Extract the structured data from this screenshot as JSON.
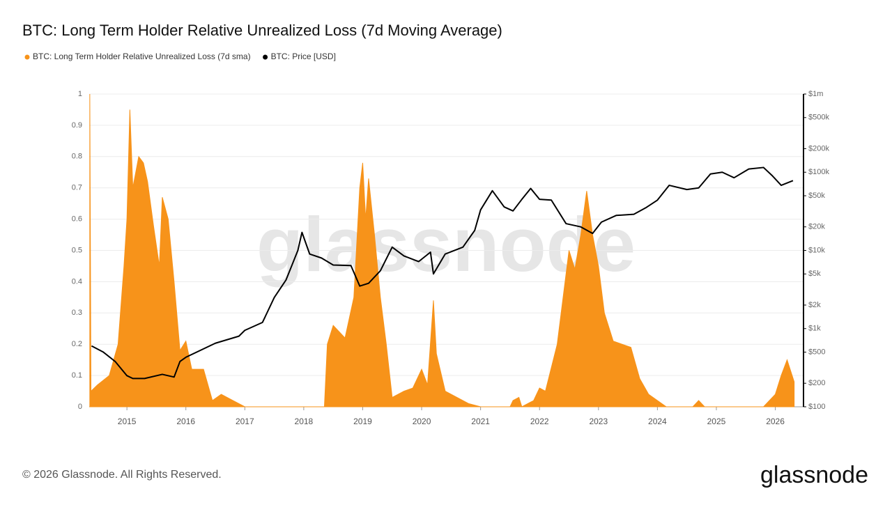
{
  "chart_data": {
    "type": "area-line",
    "title": "BTC: Long Term Holder Relative Unrealized Loss (7d Moving Average)",
    "watermark": "glassnode",
    "footer": "© 2026 Glassnode. All Rights Reserved.",
    "logo": "glassnode",
    "xlim": [
      2014.36,
      2026.36
    ],
    "xticks": [
      2015,
      2016,
      2017,
      2018,
      2019,
      2020,
      2021,
      2022,
      2023,
      2024,
      2025,
      2026
    ],
    "ylim": [
      0,
      1
    ],
    "yticks": [
      0,
      0.1,
      0.2,
      0.3,
      0.4,
      0.5,
      0.6,
      0.7,
      0.8,
      0.9,
      1
    ],
    "y2lim": [
      100,
      1000000
    ],
    "y2scale": "log",
    "y2ticks": [
      {
        "value": 100,
        "label": "$100"
      },
      {
        "value": 200,
        "label": "$200"
      },
      {
        "value": 500,
        "label": "$500"
      },
      {
        "value": 1000,
        "label": "$1k"
      },
      {
        "value": 2000,
        "label": "$2k"
      },
      {
        "value": 5000,
        "label": "$5k"
      },
      {
        "value": 10000,
        "label": "$10k"
      },
      {
        "value": 20000,
        "label": "$20k"
      },
      {
        "value": 50000,
        "label": "$50k"
      },
      {
        "value": 100000,
        "label": "$100k"
      },
      {
        "value": 200000,
        "label": "$200k"
      },
      {
        "value": 500000,
        "label": "$500k"
      },
      {
        "value": 1000000,
        "label": "$1m"
      }
    ],
    "grid": true,
    "series": [
      {
        "name": "BTC: Long Term Holder Relative Unrealized Loss (7d sma)",
        "color": "#f7931a",
        "kind": "area",
        "x": [
          2014.37,
          2014.39,
          2014.5,
          2014.7,
          2014.85,
          2014.95,
          2015.0,
          2015.05,
          2015.1,
          2015.2,
          2015.28,
          2015.35,
          2015.45,
          2015.55,
          2015.6,
          2015.7,
          2015.8,
          2015.9,
          2016.0,
          2016.1,
          2016.3,
          2016.45,
          2016.6,
          2016.8,
          2017.0,
          2018.35,
          2018.4,
          2018.5,
          2018.6,
          2018.7,
          2018.85,
          2018.95,
          2019.0,
          2019.05,
          2019.1,
          2019.2,
          2019.3,
          2019.4,
          2019.5,
          2019.7,
          2019.85,
          2020.0,
          2020.1,
          2020.2,
          2020.25,
          2020.4,
          2020.6,
          2020.8,
          2021.0,
          2021.5,
          2021.55,
          2021.65,
          2021.7,
          2021.9,
          2022.0,
          2022.1,
          2022.3,
          2022.4,
          2022.5,
          2022.6,
          2022.7,
          2022.8,
          2022.9,
          2023.0,
          2023.1,
          2023.25,
          2023.4,
          2023.55,
          2023.7,
          2023.85,
          2024.0,
          2024.15,
          2024.6,
          2024.7,
          2024.8,
          2025.8,
          2025.9,
          2026.0,
          2026.1,
          2026.2,
          2026.32
        ],
        "values": [
          1,
          0.05,
          0.07,
          0.1,
          0.2,
          0.45,
          0.6,
          0.95,
          0.7,
          0.8,
          0.78,
          0.72,
          0.58,
          0.45,
          0.67,
          0.6,
          0.4,
          0.18,
          0.21,
          0.12,
          0.12,
          0.02,
          0.04,
          0.02,
          0,
          0,
          0.2,
          0.26,
          0.24,
          0.22,
          0.35,
          0.7,
          0.78,
          0.6,
          0.73,
          0.55,
          0.35,
          0.2,
          0.03,
          0.05,
          0.06,
          0.12,
          0.07,
          0.34,
          0.17,
          0.05,
          0.03,
          0.01,
          0,
          0,
          0.02,
          0.03,
          0,
          0.02,
          0.06,
          0.05,
          0.2,
          0.35,
          0.5,
          0.44,
          0.55,
          0.69,
          0.55,
          0.45,
          0.3,
          0.21,
          0.2,
          0.19,
          0.09,
          0.04,
          0.02,
          0,
          0,
          0.02,
          0,
          0,
          0.02,
          0.04,
          0.1,
          0.15,
          0.08
        ]
      },
      {
        "name": "BTC: Price [USD]",
        "color": "#000000",
        "kind": "line",
        "axis": "y2",
        "x": [
          2014.4,
          2014.6,
          2014.8,
          2015.0,
          2015.1,
          2015.3,
          2015.6,
          2015.8,
          2015.9,
          2016.0,
          2016.5,
          2016.9,
          2017.0,
          2017.3,
          2017.5,
          2017.7,
          2017.9,
          2017.97,
          2018.1,
          2018.3,
          2018.5,
          2018.8,
          2018.95,
          2019.1,
          2019.3,
          2019.5,
          2019.7,
          2019.95,
          2020.15,
          2020.2,
          2020.4,
          2020.7,
          2020.9,
          2021.0,
          2021.2,
          2021.4,
          2021.55,
          2021.7,
          2021.85,
          2022.0,
          2022.2,
          2022.45,
          2022.7,
          2022.9,
          2023.05,
          2023.3,
          2023.6,
          2023.8,
          2024.0,
          2024.2,
          2024.5,
          2024.7,
          2024.9,
          2025.1,
          2025.3,
          2025.55,
          2025.8,
          2025.95,
          2026.1,
          2026.3
        ],
        "values": [
          600,
          500,
          380,
          250,
          230,
          230,
          260,
          240,
          380,
          430,
          650,
          800,
          950,
          1200,
          2500,
          4200,
          10000,
          17000,
          9000,
          8000,
          6500,
          6400,
          3500,
          3800,
          5500,
          11000,
          8500,
          7200,
          9500,
          5000,
          9000,
          11000,
          18000,
          33000,
          58000,
          36000,
          32000,
          45000,
          62000,
          45000,
          44000,
          22000,
          20000,
          16500,
          23000,
          28000,
          29000,
          35000,
          44000,
          68000,
          60000,
          63000,
          95000,
          100000,
          85000,
          110000,
          115000,
          90000,
          68000,
          78000
        ]
      }
    ]
  }
}
